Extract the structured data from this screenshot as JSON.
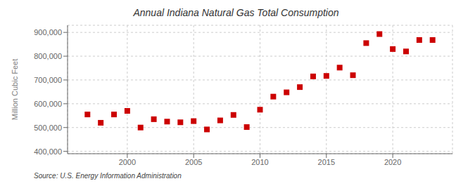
{
  "chart_data": {
    "type": "scatter",
    "title": "Annual Indiana Natural Gas Total Consumption",
    "ylabel": "Million Cubic Feet",
    "annotations": [
      "Source: U.S. Energy Information Administration"
    ],
    "x": [
      1997,
      1998,
      1999,
      2000,
      2001,
      2002,
      2003,
      2004,
      2005,
      2006,
      2007,
      2008,
      2009,
      2010,
      2011,
      2012,
      2013,
      2014,
      2015,
      2016,
      2017,
      2018,
      2019,
      2020,
      2021,
      2022,
      2023
    ],
    "values": [
      555000,
      520000,
      555000,
      570000,
      500000,
      535000,
      525000,
      522000,
      527000,
      492000,
      530000,
      553000,
      502000,
      575000,
      630000,
      648000,
      670000,
      715000,
      717000,
      752000,
      720000,
      855000,
      893000,
      830000,
      820000,
      868000,
      868000
    ],
    "color": "#cc0000",
    "marker": "square",
    "xlim": [
      1995.5,
      2024.5
    ],
    "xticks": [
      2000,
      2005,
      2010,
      2015,
      2020
    ],
    "ylim": [
      390000,
      930000
    ],
    "yticks": [
      {
        "value": 400000,
        "label": "400,000"
      },
      {
        "value": 500000,
        "label": "500,000"
      },
      {
        "value": 600000,
        "label": "600,000"
      },
      {
        "value": 700000,
        "label": "700,000"
      },
      {
        "value": 800000,
        "label": "800,000"
      },
      {
        "value": 900000,
        "label": "900,000"
      }
    ],
    "grid": true
  }
}
